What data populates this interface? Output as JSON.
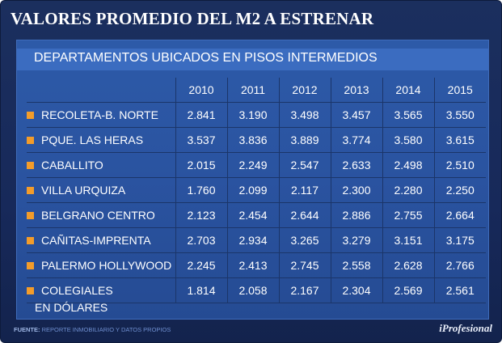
{
  "title": "VALORES PROMEDIO DEL M2 A ESTRENAR",
  "chart_data": {
    "type": "table",
    "subtitle": "DEPARTAMENTOS UBICADOS EN PISOS INTERMEDIOS",
    "columns": [
      "2010",
      "2011",
      "2012",
      "2013",
      "2014",
      "2015"
    ],
    "rows": [
      {
        "name": "RECOLETA-B. NORTE",
        "values": [
          "2.841",
          "3.190",
          "3.498",
          "3.457",
          "3.565",
          "3.550"
        ]
      },
      {
        "name": "PQUE. LAS HERAS",
        "values": [
          "3.537",
          "3.836",
          "3.889",
          "3.774",
          "3.580",
          "3.615"
        ]
      },
      {
        "name": "CABALLITO",
        "values": [
          "2.015",
          "2.249",
          "2.547",
          "2.633",
          "2.498",
          "2.510"
        ]
      },
      {
        "name": "VILLA URQUIZA",
        "values": [
          "1.760",
          "2.099",
          "2.117",
          "2.300",
          "2.280",
          "2.250"
        ]
      },
      {
        "name": "BELGRANO CENTRO",
        "values": [
          "2.123",
          "2.454",
          "2.644",
          "2.886",
          "2.755",
          "2.664"
        ]
      },
      {
        "name": "CAÑITAS-IMPRENTA",
        "values": [
          "2.703",
          "2.934",
          "3.265",
          "3.279",
          "3.151",
          "3.175"
        ]
      },
      {
        "name": "PALERMO HOLLYWOOD",
        "values": [
          "2.245",
          "2.413",
          "2.745",
          "2.558",
          "2.628",
          "2.766"
        ]
      },
      {
        "name": "COLEGIALES",
        "values": [
          "1.814",
          "2.058",
          "2.167",
          "2.304",
          "2.569",
          "2.561"
        ]
      }
    ],
    "unit_note": "EN DÓLARES"
  },
  "footer": {
    "source_label": "FUENTE:",
    "source_text": "REPORTE INMOBILIARIO Y DATOS PROPIOS",
    "brand": "iProfesional"
  },
  "colors": {
    "background": "#17295a",
    "panel": "#2a53a0",
    "band": "#3b6cc0",
    "bullet": "#f39c2a"
  }
}
